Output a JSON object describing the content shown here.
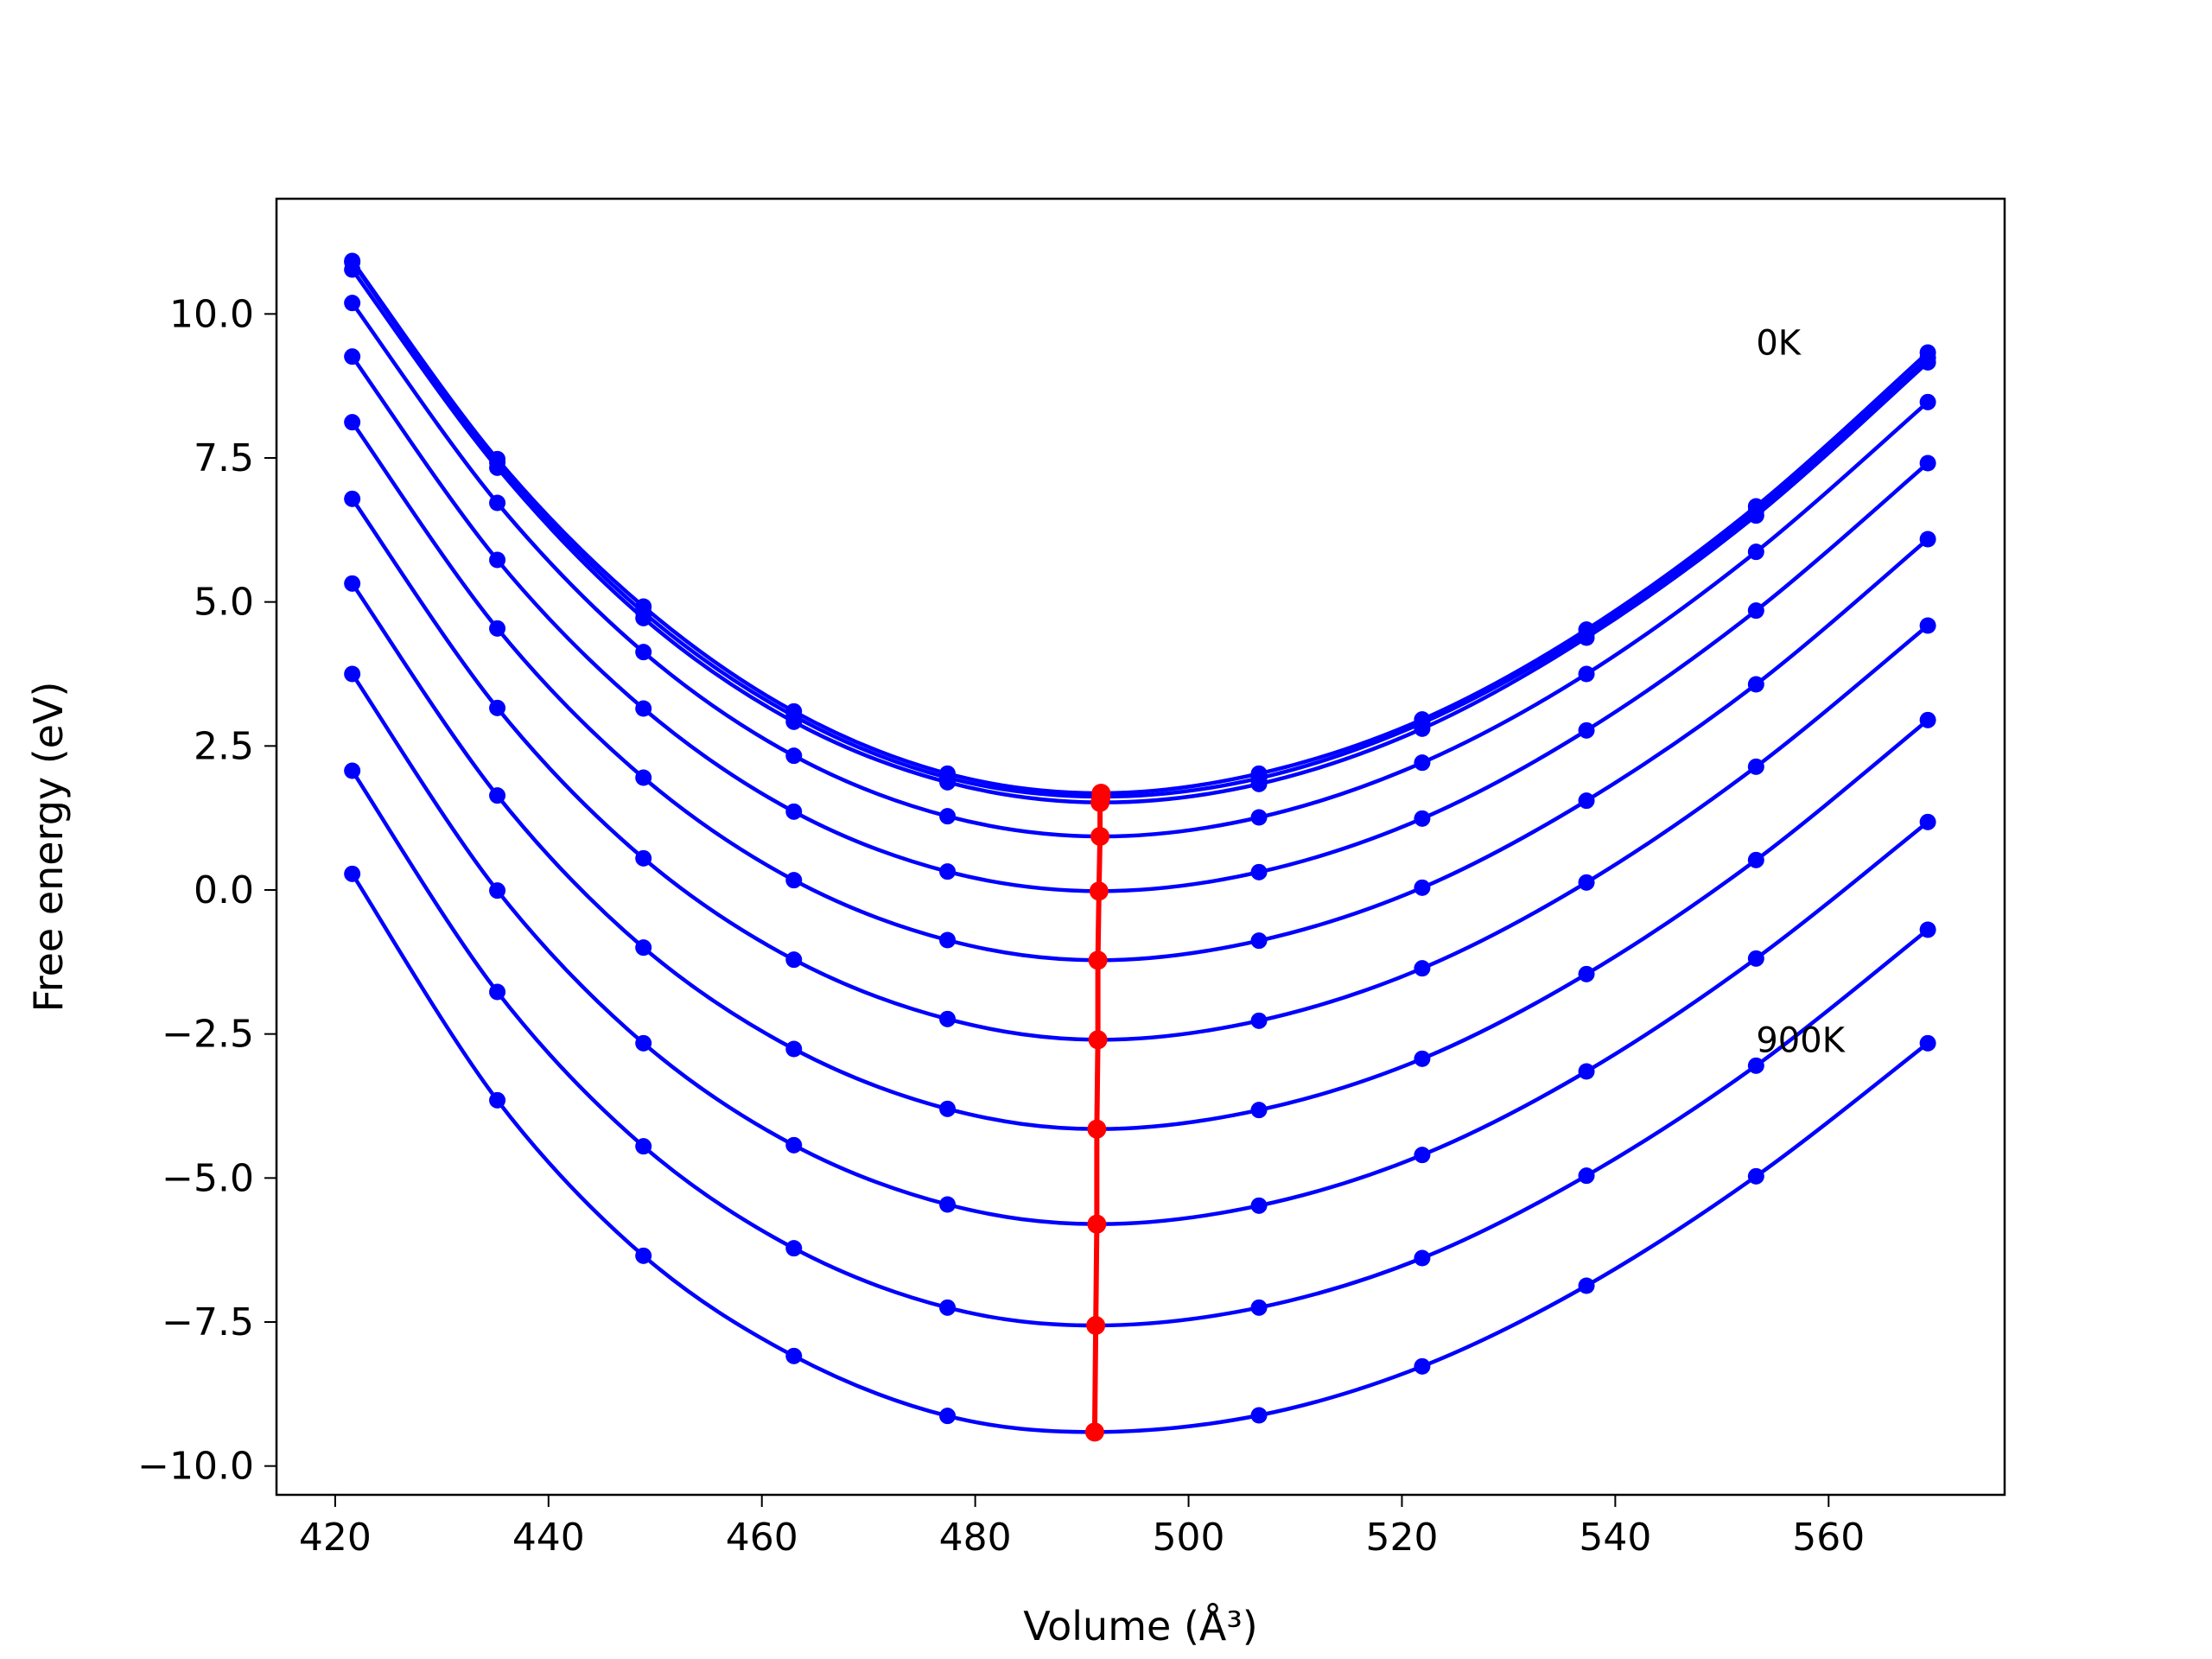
{
  "chart_data": {
    "type": "line",
    "title": "",
    "xlabel": "Volume (Å³)",
    "ylabel": "Free energy (eV)",
    "xlim": [
      414.5,
      576.5
    ],
    "ylim": [
      -10.5,
      12.0
    ],
    "x_ticks": [
      420,
      440,
      460,
      480,
      500,
      520,
      540,
      560
    ],
    "x_tick_labels": [
      "420",
      "440",
      "460",
      "480",
      "500",
      "520",
      "540",
      "560"
    ],
    "y_ticks": [
      10.0,
      7.5,
      5.0,
      2.5,
      0.0,
      -2.5,
      -5.0,
      -7.5,
      -10.0
    ],
    "y_tick_labels": [
      "10.0",
      "7.5",
      "5.0",
      "2.5",
      "0.0",
      "−2.5",
      "−5.0",
      "−7.5",
      "−10.0"
    ],
    "annotations": [
      {
        "text": "0K",
        "x": 553.2,
        "y": 9.5
      },
      {
        "text": "900K",
        "x": 553.2,
        "y": -2.6
      }
    ],
    "x": [
      421.6,
      435.2,
      448.9,
      463.0,
      477.4,
      506.6,
      521.9,
      537.3,
      553.2,
      569.3
    ],
    "series_color": "#0000ff",
    "min_line_color": "#ff0000",
    "series": [
      {
        "x0": 491.8,
        "E0": 1.68,
        "points": [
          10.92,
          7.48,
          4.92,
          3.1,
          2.02,
          2.02,
          2.96,
          4.52,
          6.66,
          9.33
        ]
      },
      {
        "x0": 491.8,
        "E0": 1.62,
        "points": [
          10.9,
          7.42,
          4.82,
          3.02,
          1.95,
          1.94,
          2.9,
          4.45,
          6.58,
          9.24
        ]
      },
      {
        "x0": 491.7,
        "E0": 1.52,
        "points": [
          10.77,
          7.33,
          4.72,
          2.92,
          1.87,
          1.84,
          2.8,
          4.38,
          6.5,
          9.16
        ]
      },
      {
        "x0": 491.7,
        "E0": 0.93,
        "points": [
          10.19,
          6.72,
          4.13,
          2.33,
          1.28,
          1.26,
          2.21,
          3.75,
          5.87,
          8.47
        ]
      },
      {
        "x0": 491.6,
        "E0": -0.02,
        "points": [
          9.26,
          5.73,
          3.15,
          1.36,
          0.32,
          0.31,
          1.24,
          2.77,
          4.85,
          7.41
        ]
      },
      {
        "x0": 491.5,
        "E0": -1.22,
        "points": [
          8.12,
          4.54,
          1.95,
          0.17,
          -0.87,
          -0.88,
          0.04,
          1.55,
          3.57,
          6.09
        ]
      },
      {
        "x0": 491.5,
        "E0": -2.6,
        "points": [
          6.79,
          3.16,
          0.55,
          -1.21,
          -2.24,
          -2.27,
          -1.36,
          0.13,
          2.14,
          4.59
        ]
      },
      {
        "x0": 491.4,
        "E0": -4.15,
        "points": [
          5.32,
          1.64,
          -1.0,
          -2.76,
          -3.8,
          -3.82,
          -2.93,
          -1.46,
          0.52,
          2.95
        ]
      },
      {
        "x0": 491.4,
        "E0": -5.8,
        "points": [
          3.75,
          -0.01,
          -2.66,
          -4.43,
          -5.46,
          -5.48,
          -4.6,
          -3.15,
          -1.19,
          1.18
        ]
      },
      {
        "x0": 491.3,
        "E0": -7.56,
        "points": [
          2.07,
          -1.77,
          -4.45,
          -6.22,
          -7.25,
          -7.25,
          -6.39,
          -4.96,
          -3.05,
          -0.69
        ]
      },
      {
        "x0": 491.2,
        "E0": -9.41,
        "points": [
          0.28,
          -3.65,
          -6.35,
          -8.09,
          -9.13,
          -9.12,
          -8.27,
          -6.87,
          -4.97,
          -2.66
        ]
      }
    ]
  }
}
